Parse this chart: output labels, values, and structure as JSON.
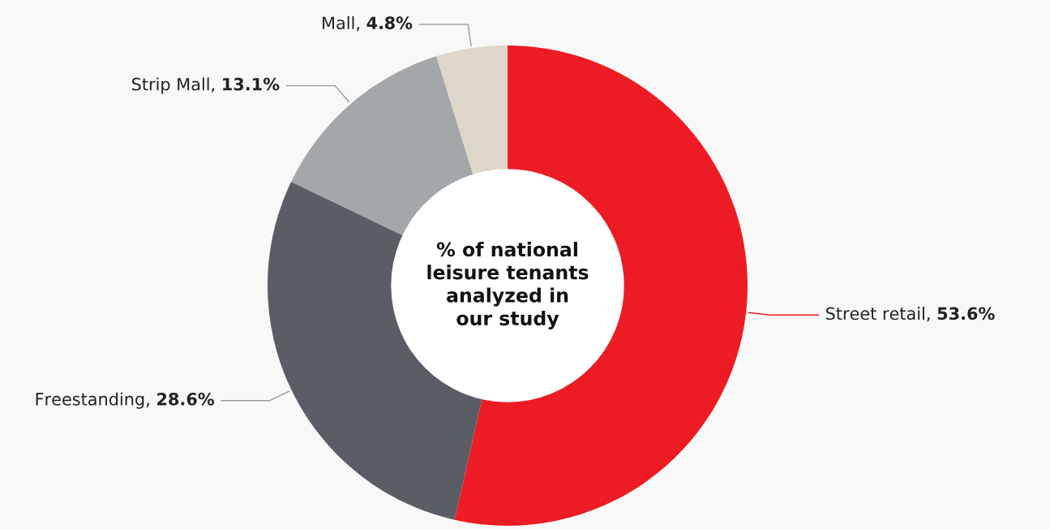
{
  "chart_data": {
    "type": "donut",
    "title": "% of national\nleisure tenants\nanalyzed in\nour study",
    "categories": [
      "Street retail",
      "Freestanding",
      "Strip Mall",
      "Mall"
    ],
    "values": [
      53.6,
      28.6,
      13.1,
      4.8
    ],
    "value_labels": [
      "53.6%",
      "28.6%",
      "13.1%",
      "4.8%"
    ],
    "colors": [
      "#ed1c24",
      "#5a5d64",
      "#a4a7aa",
      "#ddd6ca"
    ],
    "legend": false
  }
}
